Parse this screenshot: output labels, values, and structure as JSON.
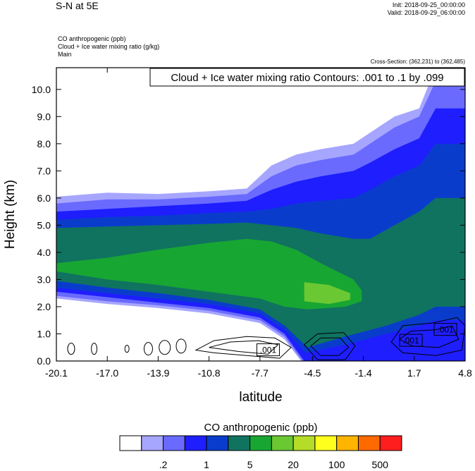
{
  "header": {
    "title": "S-N at 5E",
    "init": "Init: 2018-09-25_00:00:00",
    "valid": "Valid: 2018-09-29_06:00:00",
    "fields": [
      "CO anthropogenic   (ppb)",
      "Cloud + Ice water mixing ratio   (g/kg)",
      "Main"
    ],
    "cross_section": "Cross-Section: (362,231) to (362,485)"
  },
  "chart_data": {
    "type": "contour",
    "title": "Cloud + Ice water mixing ratio Contours: .001 to .1 by .099",
    "xlabel": "latitude",
    "ylabel": "Height (km)",
    "xlim": [
      -20.1,
      4.8
    ],
    "ylim": [
      0.0,
      10.8
    ],
    "x_ticks": [
      "-20.1",
      "-17.0",
      "-13.9",
      "-10.8",
      "-7.7",
      "-4.5",
      "-1.4",
      "1.7",
      "4.8"
    ],
    "x_tick_values": [
      -20.1,
      -17.0,
      -13.9,
      -10.8,
      -7.7,
      -4.5,
      -1.4,
      1.7,
      4.8
    ],
    "y_ticks": [
      "0.0",
      "1.0",
      "2.0",
      "3.0",
      "4.0",
      "5.0",
      "6.0",
      "7.0",
      "8.0",
      "9.0",
      "10.0"
    ],
    "y_tick_values": [
      0,
      1,
      2,
      3,
      4,
      5,
      6,
      7,
      8,
      9,
      10
    ],
    "contour_labels": [
      {
        "text": ".001",
        "x": -7.2,
        "y": 0.4
      },
      {
        "text": ".001",
        "x": 1.5,
        "y": 0.75
      },
      {
        "text": ".001",
        "x": 3.6,
        "y": 1.15
      }
    ],
    "shaded_layers": [
      {
        "level": 1,
        "color": "#a6a6ff",
        "bottom": [
          [
            -20.1,
            2.3
          ],
          [
            -17,
            2.1
          ],
          [
            -13.9,
            1.95
          ],
          [
            -10.8,
            1.75
          ],
          [
            -7.7,
            1.4
          ],
          [
            -6.2,
            0.8
          ],
          [
            -5.2,
            0.0
          ],
          [
            4.8,
            0.0
          ]
        ],
        "top": [
          [
            -20.1,
            6.05
          ],
          [
            -17,
            6.2
          ],
          [
            -13.9,
            6.15
          ],
          [
            -10.8,
            6.25
          ],
          [
            -8.5,
            6.35
          ],
          [
            -7.0,
            7.2
          ],
          [
            -5.5,
            7.6
          ],
          [
            -4.0,
            7.8
          ],
          [
            -2.0,
            8.0
          ],
          [
            -1.0,
            8.4
          ],
          [
            0.5,
            9.0
          ],
          [
            2.0,
            9.3
          ],
          [
            3.0,
            10.8
          ],
          [
            4.8,
            10.8
          ]
        ]
      },
      {
        "level": 2,
        "color": "#6a6aff",
        "bottom": [
          [
            -20.1,
            2.4
          ],
          [
            -17,
            2.2
          ],
          [
            -13.9,
            2.05
          ],
          [
            -10.8,
            1.85
          ],
          [
            -7.7,
            1.5
          ],
          [
            -6.2,
            0.9
          ],
          [
            -5.1,
            0.0
          ],
          [
            4.8,
            0.0
          ]
        ],
        "top": [
          [
            -20.1,
            5.8
          ],
          [
            -17,
            5.95
          ],
          [
            -13.9,
            5.95
          ],
          [
            -10.8,
            6.05
          ],
          [
            -8.5,
            6.15
          ],
          [
            -7.0,
            6.8
          ],
          [
            -5.5,
            7.2
          ],
          [
            -4.0,
            7.4
          ],
          [
            -2.0,
            7.6
          ],
          [
            -1.0,
            8.0
          ],
          [
            0.5,
            8.6
          ],
          [
            2.0,
            9.0
          ],
          [
            3.0,
            10.3
          ],
          [
            4.8,
            10.3
          ]
        ]
      },
      {
        "level": 3,
        "color": "#1e1eff",
        "bottom": [
          [
            -20.1,
            2.55
          ],
          [
            -17,
            2.35
          ],
          [
            -13.9,
            2.15
          ],
          [
            -10.8,
            1.95
          ],
          [
            -7.7,
            1.6
          ],
          [
            -6.2,
            1.0
          ],
          [
            -5.0,
            0.0
          ],
          [
            4.8,
            0.0
          ]
        ],
        "top": [
          [
            -20.1,
            5.5
          ],
          [
            -17,
            5.6
          ],
          [
            -13.9,
            5.7
          ],
          [
            -10.8,
            5.8
          ],
          [
            -8.5,
            5.9
          ],
          [
            -7.0,
            6.3
          ],
          [
            -5.5,
            6.6
          ],
          [
            -4.0,
            6.8
          ],
          [
            -2.0,
            7.0
          ],
          [
            -1.0,
            7.3
          ],
          [
            0.5,
            7.8
          ],
          [
            2.0,
            8.2
          ],
          [
            3.0,
            9.3
          ],
          [
            4.8,
            9.3
          ]
        ]
      },
      {
        "level": 4,
        "color": "#0a3ccc",
        "bottom": [
          [
            -20.1,
            2.7
          ],
          [
            -17,
            2.5
          ],
          [
            -13.9,
            2.3
          ],
          [
            -10.8,
            2.1
          ],
          [
            -7.7,
            1.75
          ],
          [
            -6.2,
            1.15
          ],
          [
            -4.9,
            0.3
          ],
          [
            -2.5,
            0.6
          ],
          [
            0.0,
            1.0
          ],
          [
            2.0,
            1.3
          ],
          [
            3.0,
            1.5
          ],
          [
            4.8,
            1.5
          ]
        ],
        "top": [
          [
            -20.1,
            5.2
          ],
          [
            -17,
            5.3
          ],
          [
            -13.9,
            5.35
          ],
          [
            -10.8,
            5.45
          ],
          [
            -8.5,
            5.5
          ],
          [
            -7.0,
            5.6
          ],
          [
            -5.5,
            5.8
          ],
          [
            -4.0,
            5.9
          ],
          [
            -2.0,
            6.0
          ],
          [
            -1.0,
            6.3
          ],
          [
            0.5,
            6.8
          ],
          [
            2.0,
            7.2
          ],
          [
            3.0,
            8.0
          ],
          [
            4.8,
            8.0
          ]
        ]
      },
      {
        "level": 5,
        "color": "#0f7360",
        "bottom": [
          [
            -20.1,
            2.95
          ],
          [
            -17,
            2.7
          ],
          [
            -13.9,
            2.5
          ],
          [
            -10.8,
            2.25
          ],
          [
            -7.7,
            1.9
          ],
          [
            -6.2,
            1.3
          ],
          [
            -4.8,
            0.5
          ],
          [
            -2.5,
            0.9
          ],
          [
            0.0,
            1.3
          ],
          [
            2.0,
            1.7
          ],
          [
            3.0,
            2.0
          ],
          [
            4.8,
            2.0
          ]
        ],
        "top": [
          [
            -20.1,
            4.9
          ],
          [
            -17,
            4.95
          ],
          [
            -13.9,
            5.0
          ],
          [
            -10.8,
            5.05
          ],
          [
            -8.5,
            5.1
          ],
          [
            -7.0,
            5.0
          ],
          [
            -5.5,
            4.9
          ],
          [
            -4.0,
            4.7
          ],
          [
            -2.0,
            4.5
          ],
          [
            -1.0,
            4.5
          ],
          [
            0.5,
            5.0
          ],
          [
            2.0,
            5.5
          ],
          [
            3.0,
            6.0
          ],
          [
            4.8,
            6.0
          ]
        ]
      },
      {
        "level": 6,
        "color": "#18a632",
        "bottom": [
          [
            -20.1,
            3.3
          ],
          [
            -17,
            3.0
          ],
          [
            -13.9,
            2.8
          ],
          [
            -10.8,
            2.55
          ],
          [
            -7.7,
            2.3
          ],
          [
            -6.2,
            2.0
          ],
          [
            -4.8,
            1.9
          ],
          [
            -2.5,
            2.0
          ],
          [
            -1.5,
            2.2
          ]
        ],
        "top": [
          [
            -20.1,
            3.6
          ],
          [
            -17,
            3.8
          ],
          [
            -13.9,
            4.1
          ],
          [
            -10.8,
            4.35
          ],
          [
            -8.5,
            4.5
          ],
          [
            -7.0,
            4.4
          ],
          [
            -5.5,
            4.1
          ],
          [
            -4.0,
            3.6
          ],
          [
            -2.0,
            3.0
          ],
          [
            -1.5,
            2.6
          ]
        ]
      },
      {
        "level": 7,
        "color": "#6ac832",
        "bottom": [
          [
            -5.0,
            2.2
          ],
          [
            -3.5,
            2.1
          ],
          [
            -2.2,
            2.25
          ]
        ],
        "top": [
          [
            -5.0,
            2.9
          ],
          [
            -3.5,
            2.8
          ],
          [
            -2.2,
            2.5
          ]
        ]
      }
    ],
    "colorbar": {
      "title": "CO anthropogenic  (ppb)",
      "colors": [
        "#ffffff",
        "#a6a6ff",
        "#6a6aff",
        "#1e1eff",
        "#0a3ccc",
        "#0f7360",
        "#18a632",
        "#6ac832",
        "#b4dc28",
        "#ffff1e",
        "#ffb400",
        "#ff6a00",
        "#ff1e1e"
      ],
      "tick_labels": [
        ".2",
        "1",
        "5",
        "20",
        "100",
        "500"
      ]
    }
  }
}
